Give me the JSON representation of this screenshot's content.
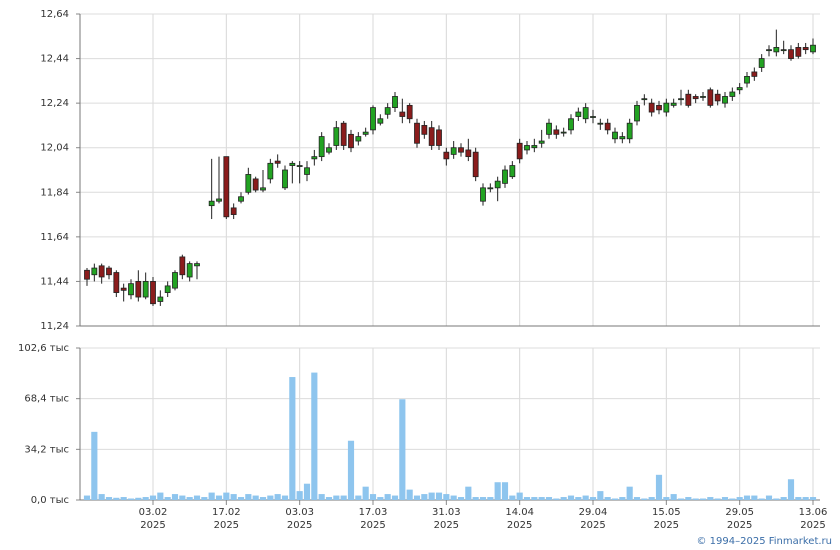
{
  "chart_data": [
    {
      "type": "candlestick",
      "up_color": "#22a322",
      "down_color": "#8b1c1c",
      "grid": true,
      "ylim": [
        11.24,
        12.64
      ],
      "yticks": [
        {
          "value": 11.24,
          "label": "11,24"
        },
        {
          "value": 11.44,
          "label": "11,44"
        },
        {
          "value": 11.64,
          "label": "11,64"
        },
        {
          "value": 11.84,
          "label": "11,84"
        },
        {
          "value": 12.04,
          "label": "12,04"
        },
        {
          "value": 12.24,
          "label": "12,24"
        },
        {
          "value": 12.44,
          "label": "12,44"
        },
        {
          "value": 12.64,
          "label": "12,64"
        }
      ],
      "open": [
        11.49,
        11.47,
        11.51,
        11.5,
        11.48,
        11.41,
        11.38,
        11.44,
        11.37,
        11.44,
        11.35,
        11.39,
        11.41,
        11.55,
        11.46,
        11.51,
        null,
        11.78,
        11.8,
        12.0,
        11.77,
        11.8,
        11.84,
        11.9,
        11.85,
        11.9,
        11.98,
        11.86,
        11.96,
        11.96,
        11.92,
        11.99,
        12.0,
        12.02,
        12.05,
        12.15,
        12.1,
        12.07,
        12.1,
        12.12,
        12.15,
        12.19,
        12.22,
        12.2,
        12.23,
        12.15,
        12.14,
        12.13,
        12.12,
        12.02,
        12.01,
        12.04,
        12.03,
        12.02,
        11.8,
        11.86,
        11.86,
        11.88,
        11.91,
        12.06,
        12.03,
        12.04,
        12.06,
        12.1,
        12.12,
        12.11,
        12.12,
        12.18,
        12.17,
        12.18,
        12.15,
        12.15,
        12.08,
        12.08,
        12.08,
        12.16,
        12.26,
        12.24,
        12.23,
        12.2,
        12.23,
        12.26,
        12.28,
        12.27,
        12.27,
        12.3,
        12.28,
        12.24,
        12.27,
        12.3,
        12.33,
        12.38,
        12.4,
        12.48,
        12.47,
        12.48,
        12.48,
        12.49,
        12.49,
        12.47
      ],
      "high": [
        11.5,
        11.52,
        11.52,
        11.51,
        11.49,
        11.43,
        11.45,
        11.49,
        11.48,
        11.46,
        11.4,
        11.44,
        11.49,
        11.56,
        11.53,
        11.53,
        null,
        11.99,
        12.0,
        12.0,
        11.79,
        11.84,
        11.95,
        11.91,
        11.94,
        11.99,
        12.01,
        11.96,
        11.98,
        11.98,
        11.98,
        12.03,
        12.11,
        12.06,
        12.16,
        12.16,
        12.12,
        12.11,
        12.13,
        12.23,
        12.19,
        12.24,
        12.29,
        12.26,
        12.24,
        12.17,
        12.16,
        12.16,
        12.14,
        12.04,
        12.07,
        12.06,
        12.08,
        12.04,
        11.88,
        11.88,
        11.91,
        11.96,
        11.98,
        12.08,
        12.07,
        12.08,
        12.12,
        12.17,
        12.14,
        12.13,
        12.19,
        12.22,
        12.24,
        12.21,
        12.17,
        12.17,
        12.13,
        12.11,
        12.17,
        12.25,
        12.28,
        12.26,
        12.25,
        12.26,
        12.26,
        12.3,
        12.3,
        12.28,
        12.29,
        12.31,
        12.3,
        12.29,
        12.31,
        12.33,
        12.38,
        12.4,
        12.46,
        12.5,
        12.57,
        12.52,
        12.5,
        12.51,
        12.51,
        12.53
      ],
      "low": [
        11.42,
        11.44,
        11.43,
        11.45,
        11.37,
        11.35,
        11.36,
        11.35,
        11.36,
        11.33,
        11.33,
        11.37,
        11.4,
        11.45,
        11.44,
        11.45,
        null,
        11.72,
        11.79,
        11.72,
        11.72,
        11.79,
        11.83,
        11.84,
        11.84,
        11.88,
        11.95,
        11.85,
        11.88,
        11.88,
        11.89,
        11.96,
        11.98,
        12.01,
        12.03,
        12.03,
        12.02,
        12.05,
        12.09,
        12.1,
        12.14,
        12.17,
        12.2,
        12.15,
        12.15,
        12.04,
        12.08,
        12.03,
        12.03,
        11.96,
        11.99,
        12.0,
        11.98,
        11.89,
        11.78,
        11.84,
        11.8,
        11.86,
        11.9,
        11.97,
        12.01,
        12.02,
        12.04,
        12.08,
        12.08,
        12.09,
        12.1,
        12.16,
        12.15,
        12.15,
        12.12,
        12.1,
        12.06,
        12.06,
        12.06,
        12.14,
        12.23,
        12.18,
        12.19,
        12.18,
        12.22,
        12.23,
        12.22,
        12.24,
        12.25,
        12.22,
        12.23,
        12.22,
        12.25,
        12.28,
        12.31,
        12.34,
        12.38,
        12.45,
        12.45,
        12.46,
        12.43,
        12.44,
        12.46,
        12.46
      ],
      "close": [
        11.45,
        11.5,
        11.46,
        11.47,
        11.39,
        11.4,
        11.43,
        11.37,
        11.44,
        11.34,
        11.37,
        11.42,
        11.48,
        11.47,
        11.52,
        11.52,
        null,
        11.8,
        11.81,
        11.73,
        11.74,
        11.82,
        11.92,
        11.85,
        11.86,
        11.97,
        11.97,
        11.94,
        11.97,
        11.96,
        11.95,
        12.0,
        12.09,
        12.04,
        12.13,
        12.05,
        12.04,
        12.09,
        12.11,
        12.22,
        12.17,
        12.22,
        12.27,
        12.18,
        12.17,
        12.06,
        12.1,
        12.05,
        12.05,
        11.99,
        12.04,
        12.02,
        12.0,
        11.91,
        11.86,
        11.86,
        11.89,
        11.94,
        11.96,
        11.99,
        12.05,
        12.05,
        12.07,
        12.15,
        12.1,
        12.11,
        12.17,
        12.2,
        12.22,
        12.18,
        12.15,
        12.12,
        12.11,
        12.09,
        12.15,
        12.23,
        12.26,
        12.2,
        12.21,
        12.24,
        12.24,
        12.26,
        12.23,
        12.26,
        12.27,
        12.23,
        12.25,
        12.27,
        12.29,
        12.31,
        12.36,
        12.36,
        12.44,
        12.48,
        12.49,
        12.48,
        12.44,
        12.45,
        12.48,
        12.5
      ]
    },
    {
      "type": "bar",
      "color": "#8ec5ee",
      "grid": true,
      "ylim": [
        0,
        102.6
      ],
      "yticks": [
        {
          "value": 0,
          "label": "0,0 тыс"
        },
        {
          "value": 34.2,
          "label": "34,2 тыс"
        },
        {
          "value": 68.4,
          "label": "68,4 тыс"
        },
        {
          "value": 102.6,
          "label": "102,6 тыс"
        }
      ],
      "categories": [
        null,
        null,
        null,
        null,
        null,
        null,
        null,
        null,
        null,
        "03.02 2025",
        null,
        null,
        null,
        null,
        null,
        null,
        null,
        null,
        null,
        "17.02 2025",
        null,
        null,
        null,
        null,
        null,
        null,
        null,
        null,
        null,
        "03.03 2025",
        null,
        null,
        null,
        null,
        null,
        null,
        null,
        null,
        null,
        "17.03 2025",
        null,
        null,
        null,
        null,
        null,
        null,
        null,
        null,
        null,
        "31.03 2025",
        null,
        null,
        null,
        null,
        null,
        null,
        null,
        null,
        null,
        "14.04 2025",
        null,
        null,
        null,
        null,
        null,
        null,
        null,
        null,
        null,
        "29.04 2025",
        null,
        null,
        null,
        null,
        null,
        null,
        null,
        null,
        null,
        "15.05 2025",
        null,
        null,
        null,
        null,
        null,
        null,
        null,
        null,
        null,
        "29.05 2025",
        null,
        null,
        null,
        null,
        null,
        null,
        null,
        null,
        null,
        "13.06 2025"
      ],
      "values": [
        3,
        46,
        4,
        2,
        1.5,
        2,
        1,
        1.5,
        2,
        3,
        5,
        2,
        4,
        3,
        2,
        3,
        2,
        5,
        3,
        5,
        4,
        2,
        4,
        3,
        2,
        3,
        4,
        3,
        83,
        6,
        11,
        86,
        4,
        2,
        3,
        3,
        40,
        3,
        9,
        4,
        2,
        4,
        3,
        68,
        7,
        3,
        4,
        5,
        5,
        4,
        3,
        2,
        9,
        2,
        2,
        2,
        12,
        12,
        3,
        5,
        2,
        2,
        2,
        2,
        1,
        2,
        3,
        2,
        3,
        2,
        6,
        2,
        1,
        2,
        9,
        2,
        1,
        2,
        17,
        2,
        4,
        1,
        2,
        1,
        1,
        2,
        1,
        2,
        1,
        2,
        3,
        3,
        1,
        3,
        1,
        2,
        14,
        2,
        2,
        2
      ]
    }
  ],
  "footer": "© 1994–2025 Finmarket.ru"
}
